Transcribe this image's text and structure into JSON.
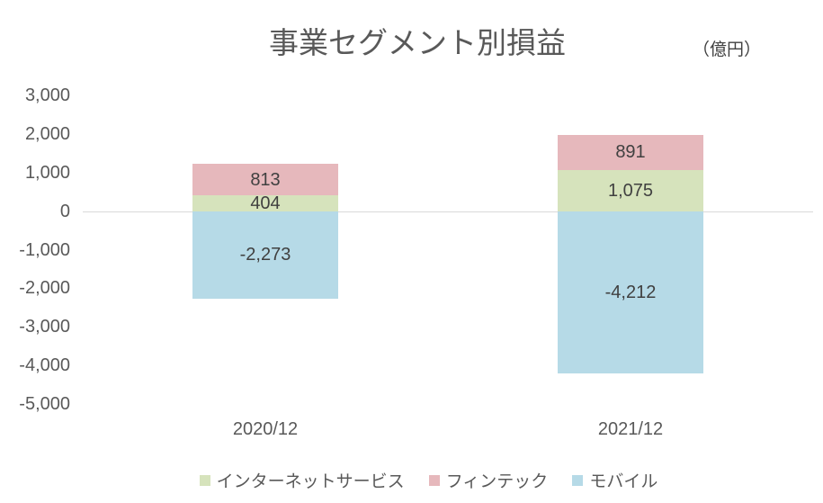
{
  "chart": {
    "title": "事業セグメント別損益",
    "unit": "（億円）"
  },
  "chart_data": {
    "type": "bar",
    "stacked": true,
    "title": "事業セグメント別損益",
    "unit_label": "（億円）",
    "categories": [
      "2020/12",
      "2021/12"
    ],
    "series": [
      {
        "name": "インターネットサービス",
        "color": "#d6e3bc",
        "values": [
          404,
          1075
        ],
        "labels": [
          "404",
          "1,075"
        ]
      },
      {
        "name": "フィンテック",
        "color": "#e6b8bc",
        "values": [
          813,
          891
        ],
        "labels": [
          "813",
          "891"
        ]
      },
      {
        "name": "モバイル",
        "color": "#b6dae7",
        "values": [
          -2273,
          -4212
        ],
        "labels": [
          "-2,273",
          "-4,212"
        ]
      }
    ],
    "ylim": [
      -5000,
      3000
    ],
    "yticks": [
      {
        "value": 3000,
        "label": "3,000"
      },
      {
        "value": 2000,
        "label": "2,000"
      },
      {
        "value": 1000,
        "label": "1,000"
      },
      {
        "value": 0,
        "label": "0"
      },
      {
        "value": -1000,
        "label": "-1,000"
      },
      {
        "value": -2000,
        "label": "-2,000"
      },
      {
        "value": -3000,
        "label": "-3,000"
      },
      {
        "value": -4000,
        "label": "-4,000"
      },
      {
        "value": -5000,
        "label": "-5,000"
      }
    ],
    "grid": false,
    "legend_position": "bottom",
    "axis_line_color": "#d9d9d9",
    "axis_text_color": "#595959",
    "data_label_color": "#404040"
  }
}
